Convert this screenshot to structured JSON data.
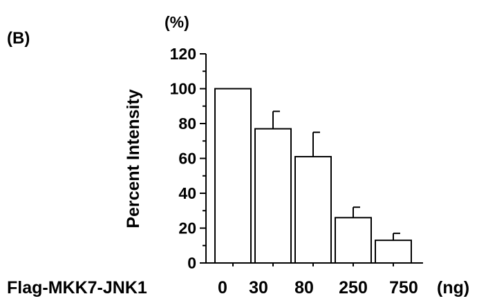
{
  "panel_label": "(B)",
  "chart_data": {
    "type": "bar",
    "title": "",
    "unit_label": "(%)",
    "ylabel": "Percent Intensity",
    "xlabel": "Flag-MKK7-JNK1",
    "x_unit": "(ng)",
    "categories": [
      "0",
      "30",
      "80",
      "250",
      "750"
    ],
    "values": [
      100,
      77,
      61,
      26,
      13
    ],
    "errors": [
      0,
      10,
      14,
      6,
      4
    ],
    "ylim": [
      0,
      120
    ],
    "yticks": [
      "0",
      "20",
      "40",
      "60",
      "80",
      "100",
      "120"
    ],
    "bar_fill": "#ffffff",
    "bar_stroke": "#000000",
    "grid": false,
    "legend": "none"
  }
}
